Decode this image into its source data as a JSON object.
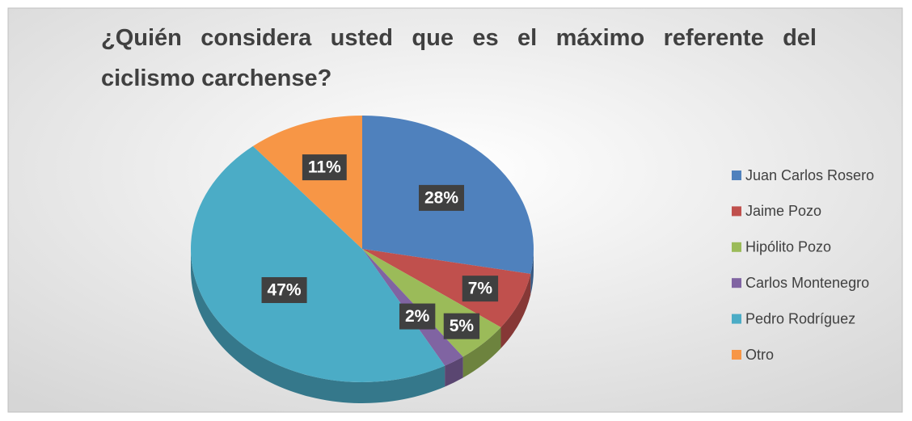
{
  "chart_data": {
    "type": "pie3d",
    "title": "¿Quién considera usted que es el máximo referente del ciclismo carchense?",
    "categories": [
      "Juan Carlos Rosero",
      "Jaime Pozo",
      "Hipólito Pozo",
      "Carlos Montenegro",
      "Pedro Rodríguez",
      "Otro"
    ],
    "values": [
      28,
      7,
      5,
      2,
      47,
      11
    ],
    "value_labels": [
      "28%",
      "7%",
      "5%",
      "2%",
      "47%",
      "11%"
    ],
    "colors": [
      "#4f81bd",
      "#c0504d",
      "#9bbb59",
      "#8064a2",
      "#4bacc6",
      "#f79646"
    ],
    "legend": "right"
  }
}
